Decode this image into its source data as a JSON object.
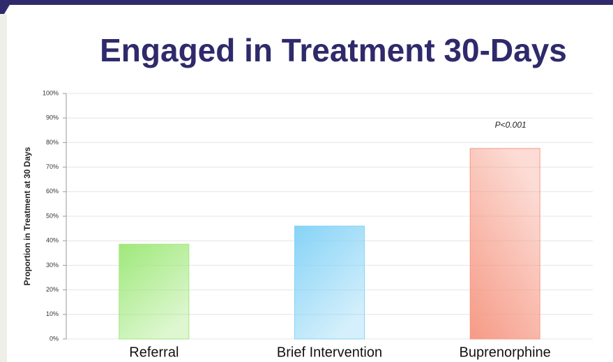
{
  "chart_data": {
    "type": "bar",
    "title": "Engaged in Treatment 30-Days",
    "y_label": "Proportion in Treatment at 30 Days",
    "annotation": "P<0.001",
    "categories": [
      "Referral",
      "Brief Intervention",
      "Buprenorphine"
    ],
    "values": [
      38.6,
      46,
      77.6
    ],
    "colors": [
      "#9fe87a",
      "#86d3f6",
      "#f69a86"
    ],
    "ylim": [
      0,
      100
    ],
    "yticks": [
      {
        "value": 0,
        "label": "0%"
      },
      {
        "value": 10,
        "label": "10%"
      },
      {
        "value": 20,
        "label": "20%"
      },
      {
        "value": 30,
        "label": "30%"
      },
      {
        "value": 40,
        "label": "40%"
      },
      {
        "value": 50,
        "label": "50%"
      },
      {
        "value": 60,
        "label": "60%"
      },
      {
        "value": 70,
        "label": "70%"
      },
      {
        "value": 80,
        "label": "80%"
      },
      {
        "value": 90,
        "label": "90%"
      },
      {
        "value": 100,
        "label": "100%"
      }
    ],
    "grid": true
  }
}
